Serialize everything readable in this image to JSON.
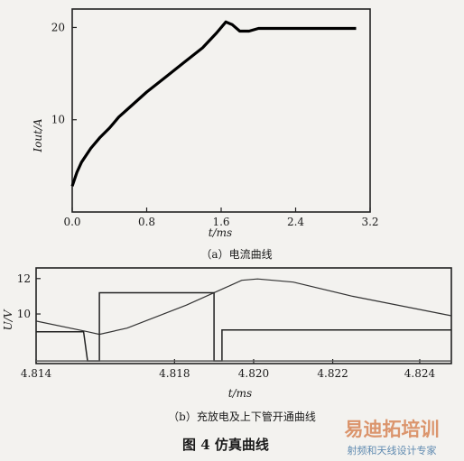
{
  "figure": {
    "caption": "图 4   仿真曲线",
    "watermark_line1": "易迪拓培训",
    "watermark_line2": "射频和天线设计专家"
  },
  "chart_data": [
    {
      "type": "line",
      "subtitle": "（a）电流曲线",
      "xlabel": "t/ms",
      "ylabel": "Iout/A",
      "xlim": [
        0,
        3.2
      ],
      "ylim": [
        0,
        22
      ],
      "x_ticks": [
        "0.0",
        "0.8",
        "1.6",
        "2.4",
        "3.2"
      ],
      "x_tick_values": [
        0,
        0.8,
        1.6,
        2.4,
        3.2
      ],
      "y_ticks": [
        "10",
        "20"
      ],
      "y_tick_values": [
        10,
        20
      ],
      "grid": false,
      "series": [
        {
          "color": "#000000",
          "x": [
            0.0,
            0.05,
            0.1,
            0.2,
            0.3,
            0.4,
            0.5,
            0.6,
            0.8,
            1.0,
            1.2,
            1.4,
            1.55,
            1.65,
            1.72,
            1.8,
            1.9,
            2.0,
            2.4,
            2.8,
            3.05
          ],
          "y": [
            2.8,
            4.3,
            5.4,
            6.9,
            8.1,
            9.1,
            10.3,
            11.2,
            13.0,
            14.6,
            16.2,
            17.8,
            19.4,
            20.6,
            20.3,
            19.6,
            19.6,
            19.9,
            19.9,
            19.9,
            19.9
          ]
        }
      ]
    },
    {
      "type": "line",
      "subtitle": "（b）充放电及上下管开通曲线",
      "xlabel": "t/ms",
      "ylabel": "U/V",
      "xlim": [
        4.814,
        4.8245
      ],
      "ylim": [
        7.2,
        12.6
      ],
      "x_ticks": [
        "4.814",
        "4.818",
        "4.820",
        "4.822",
        "4.824"
      ],
      "x_tick_values": [
        4.814,
        4.8175,
        4.8195,
        4.8215,
        4.8237
      ],
      "y_ticks": [
        "10",
        "12"
      ],
      "y_tick_values": [
        10,
        12
      ],
      "grid": false,
      "series": [
        {
          "color": "#333333",
          "x": [
            4.814,
            4.8153,
            4.8156,
            4.8163,
            4.8178,
            4.8188,
            4.8192,
            4.8196,
            4.8205,
            4.822,
            4.8245
          ],
          "y": [
            9.6,
            9.0,
            8.85,
            9.2,
            10.5,
            11.5,
            11.9,
            11.98,
            11.8,
            11.0,
            9.9
          ]
        },
        {
          "color": "#222222",
          "x": [
            4.814,
            4.8152,
            4.8153,
            4.8156,
            4.8156,
            4.8185,
            4.8185,
            4.8187,
            4.8187,
            4.8245
          ],
          "y": [
            9.0,
            9.0,
            7.35,
            7.35,
            11.2,
            11.2,
            7.35,
            7.35,
            9.1,
            9.1
          ]
        },
        {
          "color": "#555555",
          "x": [
            4.814,
            4.8245
          ],
          "y": [
            7.35,
            7.35
          ]
        }
      ]
    }
  ]
}
